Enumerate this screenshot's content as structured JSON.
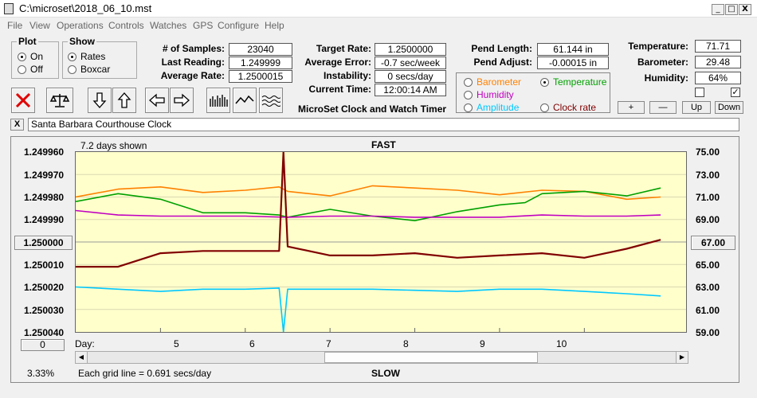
{
  "window": {
    "title": "C:\\microset\\2018_06_10.mst",
    "min": "_",
    "max": "□",
    "close": "X"
  },
  "menu": [
    "File",
    "View",
    "Operations",
    "Controls",
    "Watches",
    "GPS",
    "Configure",
    "Help"
  ],
  "plot_group": {
    "legend": "Plot",
    "on": "On",
    "off": "Off",
    "selected": "On"
  },
  "show_group": {
    "legend": "Show",
    "rates": "Rates",
    "boxcar": "Boxcar",
    "selected": "Rates"
  },
  "stats": {
    "samples_label": "# of Samples:",
    "samples": "23040",
    "last_reading_label": "Last Reading:",
    "last_reading": "1.249999",
    "average_rate_label": "Average Rate:",
    "average_rate": "1.2500015",
    "target_rate_label": "Target Rate:",
    "target_rate": "1.2500000",
    "average_error_label": "Average Error:",
    "average_error": "-0.7 sec/week",
    "instability_label": "Instability:",
    "instability": "0 secs/day",
    "current_time_label": "Current Time:",
    "current_time": "12:00:14 AM",
    "pend_length_label": "Pend Length:",
    "pend_length": "61.144 in",
    "pend_adjust_label": "Pend Adjust:",
    "pend_adjust": "-0.00015 in",
    "temperature_label": "Temperature:",
    "temperature": "71.71",
    "barometer_label": "Barometer:",
    "barometer": "29.48",
    "humidity_label": "Humidity:",
    "humidity": "64%"
  },
  "app_title": "MicroSet Clock and Watch Timer",
  "aux_select": {
    "barometer": "Barometer",
    "temperature": "Temperature",
    "humidity": "Humidity",
    "amplitude": "Amplitude",
    "clock_rate": "Clock rate",
    "selected": "Temperature",
    "colors": {
      "barometer": "#ff8000",
      "temperature": "#00a000",
      "humidity": "#c000c0",
      "amplitude": "#00c8ff",
      "clock_rate": "#800000"
    }
  },
  "scale_buttons": {
    "plus": "+",
    "minus": "—",
    "up": "Up",
    "down": "Down"
  },
  "checkboxes": {
    "left": "",
    "right": "✓"
  },
  "clock_name": "Santa Barbara Courthouse Clock",
  "clear_name": "X",
  "plot": {
    "days_shown": "7.2 days shown",
    "top_label": "FAST",
    "bottom_label": "SLOW",
    "grid_note": "Each grid line = 0.691 secs/day",
    "percent": "3.33%",
    "day_label": "Day:",
    "zero_button": "0",
    "center_left": "1.250000",
    "center_right": "67.00"
  },
  "chart_data": {
    "type": "line",
    "x_label": "Day:",
    "x_ticks": [
      "5",
      "6",
      "7",
      "8",
      "9",
      "10"
    ],
    "y_left_ticks": [
      "1.249960",
      "1.249970",
      "1.249980",
      "1.249990",
      "1.250000",
      "1.250010",
      "1.250020",
      "1.250030",
      "1.250040"
    ],
    "y_right_ticks": [
      "75.00",
      "73.00",
      "71.00",
      "69.00",
      "67.00",
      "65.00",
      "63.00",
      "61.00",
      "59.00"
    ],
    "y_left_range": [
      1.24996,
      1.25004
    ],
    "y_right_range": [
      59,
      75
    ],
    "x_range": [
      4,
      11.2
    ],
    "grid": "horizontal",
    "series": [
      {
        "name": "Barometer",
        "color": "#ff8000",
        "x": [
          4,
          4.5,
          5,
          5.5,
          6,
          6.4,
          6.5,
          7,
          7.5,
          8,
          8.5,
          9,
          9.5,
          10,
          10.5,
          10.9
        ],
        "y": [
          71.0,
          71.7,
          71.9,
          71.4,
          71.6,
          71.9,
          71.5,
          71.1,
          72.0,
          71.8,
          71.6,
          71.2,
          71.6,
          71.5,
          70.8,
          71.0
        ]
      },
      {
        "name": "Temperature",
        "color": "#00a000",
        "x": [
          4,
          4.5,
          5,
          5.5,
          6,
          6.4,
          6.5,
          7,
          7.5,
          8,
          8.5,
          9,
          9.3,
          9.5,
          10,
          10.5,
          10.9
        ],
        "y": [
          70.6,
          71.3,
          70.8,
          69.6,
          69.6,
          69.4,
          69.2,
          69.9,
          69.3,
          68.9,
          69.7,
          70.3,
          70.5,
          71.3,
          71.5,
          71.1,
          71.8
        ]
      },
      {
        "name": "Humidity",
        "color": "#c000c0",
        "x": [
          4,
          4.5,
          5,
          5.5,
          6,
          6.5,
          7,
          7.5,
          8,
          8.5,
          9,
          9.5,
          10,
          10.5,
          10.9
        ],
        "y": [
          69.8,
          69.4,
          69.3,
          69.3,
          69.3,
          69.2,
          69.3,
          69.3,
          69.2,
          69.2,
          69.2,
          69.4,
          69.3,
          69.3,
          69.4
        ]
      },
      {
        "name": "Amplitude",
        "color": "#00c8ff",
        "x": [
          4,
          4.5,
          5,
          5.5,
          6,
          6.4,
          6.45,
          6.5,
          7,
          7.5,
          8,
          8.5,
          9,
          9.5,
          10,
          10.5,
          10.9
        ],
        "y": [
          63.0,
          62.8,
          62.6,
          62.8,
          62.8,
          62.9,
          59.0,
          62.8,
          62.8,
          62.8,
          62.7,
          62.6,
          62.8,
          62.8,
          62.6,
          62.4,
          62.2
        ]
      },
      {
        "name": "Clock rate",
        "color": "#800000",
        "x": [
          4,
          4.5,
          5,
          5.5,
          6,
          6.4,
          6.45,
          6.5,
          7,
          7.5,
          8,
          8.5,
          9,
          9.5,
          10,
          10.5,
          10.9
        ],
        "y": [
          1.250011,
          1.250011,
          1.250005,
          1.250004,
          1.250004,
          1.250004,
          1.24996,
          1.250002,
          1.250006,
          1.250006,
          1.250005,
          1.250007,
          1.250006,
          1.250005,
          1.250007,
          1.250003,
          1.249999
        ]
      }
    ]
  }
}
